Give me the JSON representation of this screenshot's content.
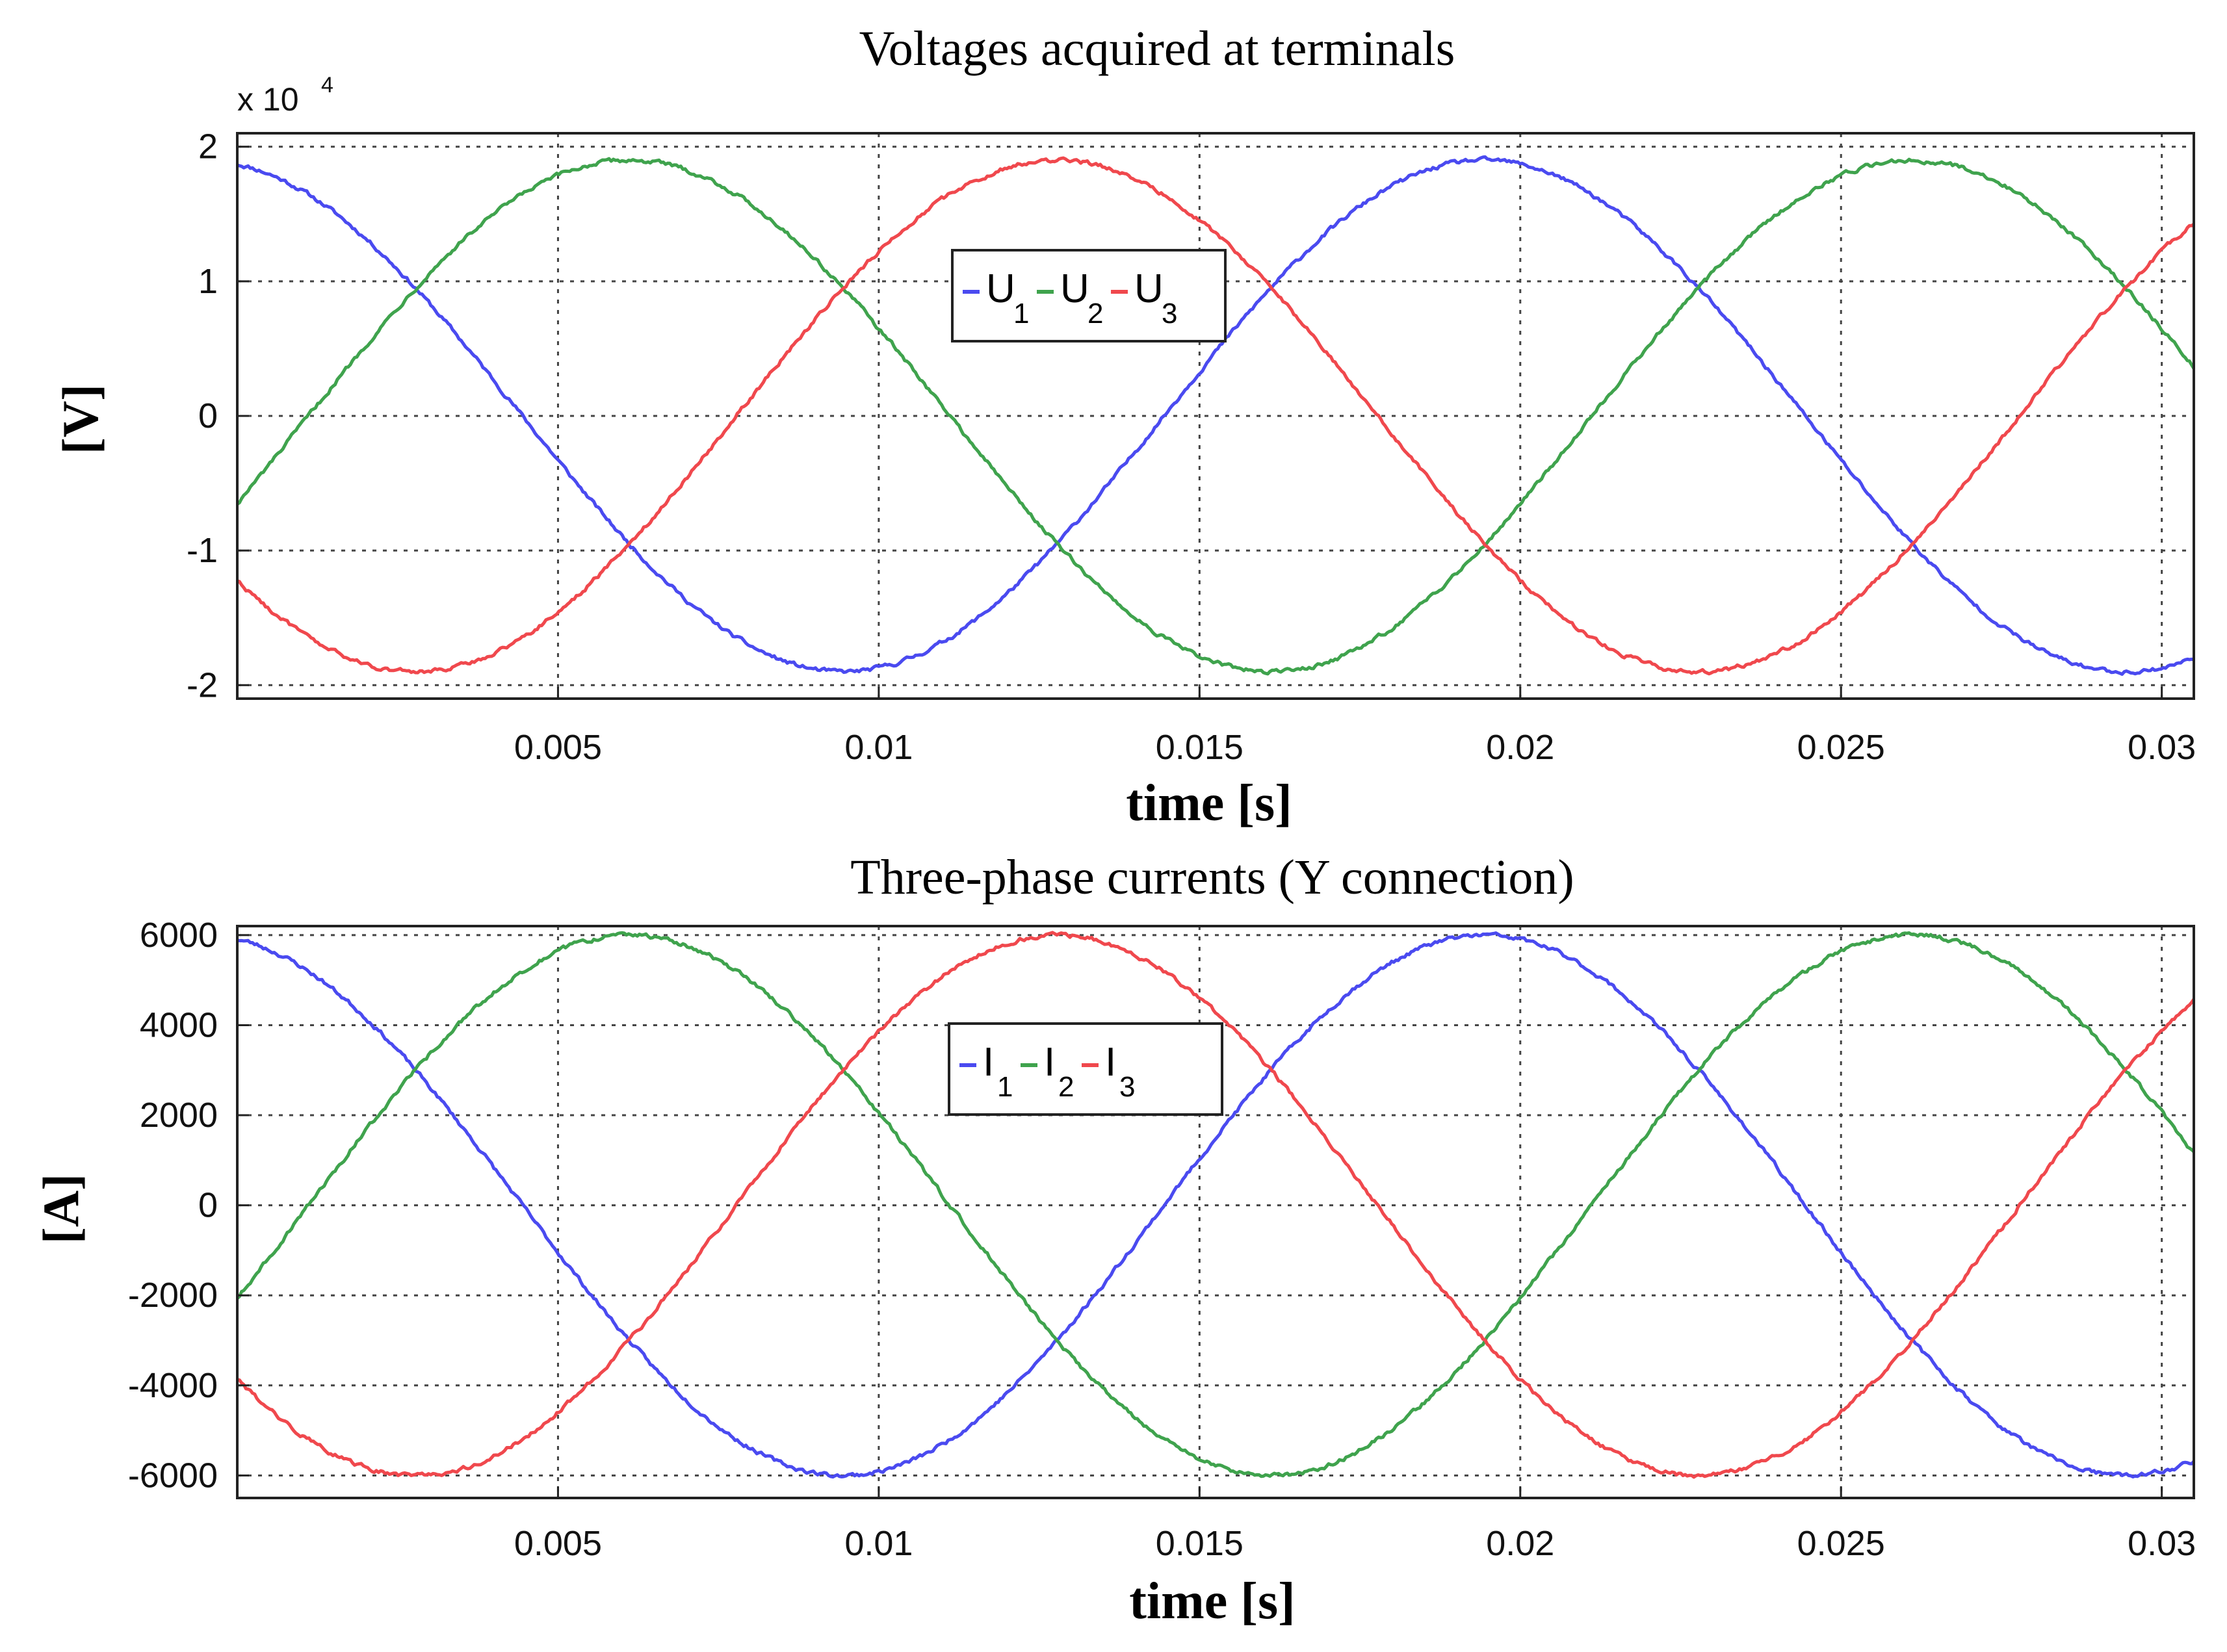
{
  "chart_data": [
    {
      "type": "line",
      "title": "Voltages acquired at terminals",
      "xlabel": "time [s]",
      "ylabel": "[V]",
      "y_exponent_label": "x 10",
      "y_exponent_power": "4",
      "xlim": [
        0,
        0.0305
      ],
      "ylim": [
        -2.1,
        2.1
      ],
      "x_ticks": [
        0.005,
        0.01,
        0.015,
        0.02,
        0.025,
        0.03
      ],
      "x_tick_labels": [
        "0.005",
        "0.01",
        "0.015",
        "0.02",
        "0.025",
        "0.03"
      ],
      "y_ticks": [
        -2,
        -1,
        0,
        1,
        2
      ],
      "y_tick_labels": [
        "-2",
        "-1",
        "0",
        "1",
        "2"
      ],
      "grid": true,
      "legend_position": "center-top",
      "frequency_hz": 50,
      "series": [
        {
          "name": "U",
          "subscript": "1",
          "color": "#4a4af0",
          "amplitude": 1.9,
          "phase_deg": 10
        },
        {
          "name": "U",
          "subscript": "2",
          "color": "#3fa34d",
          "amplitude": 1.9,
          "phase_deg": -110
        },
        {
          "name": "U",
          "subscript": "3",
          "color": "#f0484d",
          "amplitude": 1.9,
          "phase_deg": 130
        }
      ]
    },
    {
      "type": "line",
      "title": "Three-phase currents (Y connection)",
      "xlabel": "time [s]",
      "ylabel": "[A]",
      "xlim": [
        0,
        0.0305
      ],
      "ylim": [
        -6500,
        6200
      ],
      "x_ticks": [
        0.005,
        0.01,
        0.015,
        0.02,
        0.025,
        0.03
      ],
      "x_tick_labels": [
        "0.005",
        "0.01",
        "0.015",
        "0.02",
        "0.025",
        "0.03"
      ],
      "y_ticks": [
        -6000,
        -4000,
        -2000,
        0,
        2000,
        4000,
        6000
      ],
      "y_tick_labels": [
        "-6000",
        "-4000",
        "-2000",
        "0",
        "2000",
        "4000",
        "6000"
      ],
      "grid": true,
      "legend_position": "center-top",
      "frequency_hz": 50,
      "series": [
        {
          "name": "I",
          "subscript": "1",
          "color": "#4a4af0",
          "amplitude": 6000,
          "phase_deg": 10
        },
        {
          "name": "I",
          "subscript": "2",
          "color": "#3fa34d",
          "amplitude": 6000,
          "phase_deg": -110
        },
        {
          "name": "I",
          "subscript": "3",
          "color": "#f0484d",
          "amplitude": 6000,
          "phase_deg": 130
        }
      ]
    }
  ]
}
